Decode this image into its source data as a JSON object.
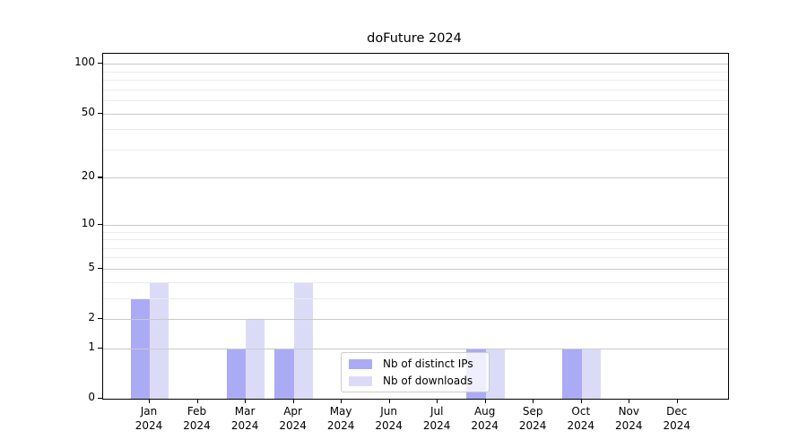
{
  "title": "doFuture 2024",
  "chart_data": {
    "type": "bar",
    "title": "doFuture 2024",
    "categories": [
      "Jan",
      "Feb",
      "Mar",
      "Apr",
      "May",
      "Jun",
      "Jul",
      "Aug",
      "Sep",
      "Oct",
      "Nov",
      "Dec"
    ],
    "category_second_line": "2024",
    "series": [
      {
        "name": "Nb of distinct IPs",
        "color": "#ababf5",
        "values": [
          3,
          0,
          1,
          1,
          0,
          0,
          0,
          1,
          0,
          1,
          0,
          0
        ]
      },
      {
        "name": "Nb of downloads",
        "color": "#dbdbf8",
        "values": [
          4,
          0,
          2,
          4,
          0,
          0,
          0,
          1,
          0,
          1,
          0,
          0
        ]
      }
    ],
    "y_scale": "log1p",
    "y_major_ticks": [
      0,
      1,
      2,
      5,
      10,
      20,
      50,
      100
    ],
    "y_minor_gridlines": [
      3,
      4,
      6,
      7,
      8,
      9,
      30,
      40,
      60,
      70,
      80,
      90
    ],
    "y_max": 115,
    "xlabel": "",
    "ylabel": "",
    "grid": true,
    "legend_position": "bottom-center",
    "colors": {
      "major_grid": "#c9c9c9",
      "minor_grid": "#ececec",
      "spine": "#000000",
      "background": "#ffffff"
    }
  }
}
